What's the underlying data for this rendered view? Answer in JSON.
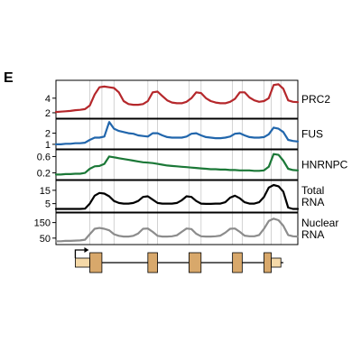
{
  "panel_label": "E",
  "chart_data": {
    "type": "line",
    "title": "",
    "xlabel": "",
    "grid": "vertical guide lines at feature boundaries",
    "x_positions": [
      0.0,
      0.02,
      0.04,
      0.06,
      0.08,
      0.1,
      0.12,
      0.14,
      0.16,
      0.18,
      0.2,
      0.22,
      0.24,
      0.26,
      0.28,
      0.3,
      0.32,
      0.34,
      0.36,
      0.38,
      0.4,
      0.42,
      0.44,
      0.46,
      0.48,
      0.5,
      0.52,
      0.54,
      0.56,
      0.58,
      0.6,
      0.62,
      0.64,
      0.66,
      0.68,
      0.7,
      0.72,
      0.74,
      0.76,
      0.78,
      0.8,
      0.82,
      0.84,
      0.86,
      0.88,
      0.9,
      0.92,
      0.94,
      0.96,
      0.98,
      1.0
    ],
    "guide_lines_x": [
      0.14,
      0.19,
      0.24,
      0.38,
      0.42,
      0.55,
      0.6,
      0.73,
      0.77,
      0.86,
      0.89,
      0.93
    ],
    "tracks": [
      {
        "name": "PRC2",
        "label_lines": [
          "PRC2"
        ],
        "color": "#b5272b",
        "ylim": [
          1.5,
          6.2
        ],
        "yticks": [
          2,
          4
        ],
        "values": [
          2.1,
          2.15,
          2.2,
          2.25,
          2.35,
          2.4,
          2.5,
          3.0,
          4.5,
          5.5,
          5.6,
          5.5,
          5.4,
          4.8,
          3.6,
          3.2,
          3.1,
          3.1,
          3.2,
          3.6,
          4.8,
          4.9,
          4.3,
          3.7,
          3.4,
          3.3,
          3.3,
          3.5,
          4.0,
          4.8,
          4.7,
          4.0,
          3.6,
          3.4,
          3.3,
          3.3,
          3.5,
          3.9,
          4.8,
          4.8,
          4.1,
          3.7,
          3.5,
          3.6,
          4.0,
          5.8,
          5.9,
          5.3,
          3.7,
          3.5,
          3.45
        ]
      },
      {
        "name": "FUS",
        "label_lines": [
          "FUS"
        ],
        "color": "#2166ac",
        "ylim": [
          0.75,
          3.1
        ],
        "yticks": [
          1,
          2
        ],
        "values": [
          1.0,
          1.0,
          1.05,
          1.05,
          1.1,
          1.1,
          1.15,
          1.4,
          1.6,
          1.6,
          1.7,
          3.0,
          2.4,
          2.2,
          2.1,
          2.0,
          1.95,
          1.8,
          1.75,
          1.7,
          2.0,
          2.0,
          1.8,
          1.65,
          1.6,
          1.6,
          1.6,
          1.7,
          1.95,
          2.0,
          1.8,
          1.65,
          1.6,
          1.55,
          1.55,
          1.6,
          1.7,
          1.95,
          2.0,
          1.8,
          1.65,
          1.6,
          1.6,
          1.65,
          1.9,
          2.5,
          2.4,
          2.1,
          1.4,
          1.3,
          1.25
        ]
      },
      {
        "name": "HNRNPC",
        "label_lines": [
          "HNRNPC"
        ],
        "color": "#1b7837",
        "ylim": [
          0.08,
          0.72
        ],
        "yticks": [
          0.2,
          0.6
        ],
        "values": [
          0.16,
          0.16,
          0.17,
          0.17,
          0.18,
          0.18,
          0.2,
          0.3,
          0.36,
          0.37,
          0.42,
          0.6,
          0.58,
          0.56,
          0.54,
          0.52,
          0.5,
          0.48,
          0.46,
          0.45,
          0.44,
          0.42,
          0.4,
          0.38,
          0.37,
          0.36,
          0.35,
          0.34,
          0.33,
          0.32,
          0.31,
          0.3,
          0.29,
          0.29,
          0.28,
          0.28,
          0.27,
          0.27,
          0.26,
          0.26,
          0.26,
          0.25,
          0.25,
          0.26,
          0.35,
          0.66,
          0.64,
          0.5,
          0.3,
          0.27,
          0.26
        ]
      },
      {
        "name": "Total RNA",
        "label_lines": [
          "Total",
          "RNA"
        ],
        "color": "#000000",
        "ylim": [
          0.0,
          21.0
        ],
        "yticks": [
          5,
          15
        ],
        "values": [
          1.0,
          1.0,
          1.0,
          1.0,
          1.0,
          1.0,
          1.2,
          5.0,
          11.0,
          13.0,
          12.5,
          10.5,
          7.0,
          5.5,
          5.0,
          5.0,
          5.5,
          7.0,
          10.0,
          10.5,
          8.0,
          5.5,
          5.0,
          5.0,
          5.0,
          5.5,
          7.5,
          10.5,
          10.0,
          7.0,
          5.0,
          4.8,
          4.8,
          5.0,
          5.0,
          6.0,
          9.5,
          11.0,
          9.0,
          6.0,
          5.0,
          5.0,
          6.0,
          10.0,
          17.0,
          19.0,
          18.0,
          14.0,
          2.0,
          1.0,
          1.0
        ]
      },
      {
        "name": "Nuclear RNA",
        "label_lines": [
          "Nuclear",
          "RNA"
        ],
        "color": "#8c8c8c",
        "ylim": [
          20,
          200
        ],
        "yticks": [
          50,
          150
        ],
        "values": [
          30,
          30,
          32,
          32,
          34,
          35,
          40,
          75,
          110,
          115,
          110,
          100,
          75,
          65,
          60,
          60,
          65,
          80,
          110,
          112,
          90,
          65,
          60,
          60,
          62,
          68,
          90,
          112,
          108,
          78,
          62,
          60,
          60,
          62,
          66,
          85,
          110,
          112,
          90,
          66,
          62,
          62,
          70,
          110,
          160,
          175,
          165,
          130,
          70,
          62,
          60
        ]
      }
    ],
    "gene_model": {
      "start_x": 0.08,
      "end_x": 0.97,
      "tss_x": 0.08,
      "utr_5": [
        0.08,
        0.14
      ],
      "exons": [
        [
          0.14,
          0.19
        ],
        [
          0.38,
          0.42
        ],
        [
          0.55,
          0.6
        ],
        [
          0.73,
          0.77
        ],
        [
          0.86,
          0.89
        ]
      ],
      "utr_3": [
        0.89,
        0.93
      ],
      "exon_color": "#d8a86b",
      "utr_color": "#f5d9a8"
    }
  }
}
